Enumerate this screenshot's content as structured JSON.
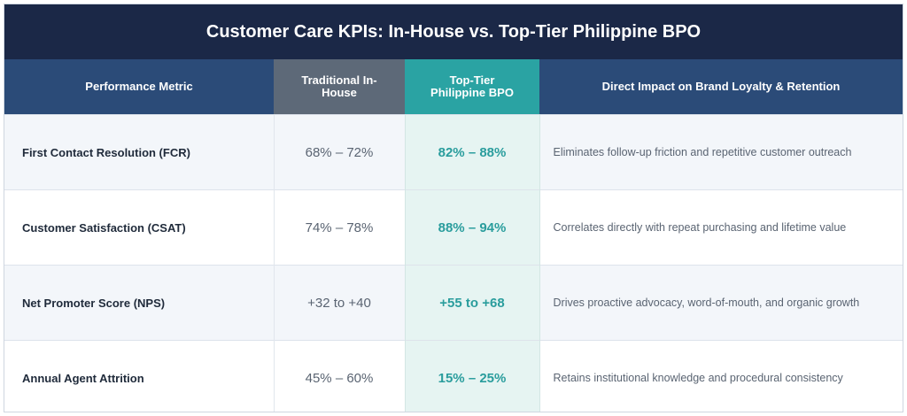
{
  "header": {
    "title": "Customer Care KPIs: In-House vs. Top-Tier Philippine BPO"
  },
  "table": {
    "columns": [
      "Performance Metric",
      "Traditional In-House",
      "Top-Tier Philippine BPO",
      "Direct Impact on Brand Loyalty & Retention"
    ],
    "rows": [
      [
        "First Contact Resolution (FCR)",
        "68% – 72%",
        "82% – 88%",
        "Eliminates follow-up friction and repetitive customer outreach"
      ],
      [
        "Customer Satisfaction (CSAT)",
        "74% – 78%",
        "88% – 94%",
        "Correlates directly with repeat purchasing and lifetime value"
      ],
      [
        "Net Promoter Score (NPS)",
        "+32 to +40",
        "+55 to +68",
        "Drives proactive advocacy, word-of-mouth, and organic growth"
      ],
      [
        "Annual Agent Attrition",
        "45% – 60%",
        "15% – 25%",
        "Retains institutional knowledge and procedural consistency"
      ]
    ]
  }
}
